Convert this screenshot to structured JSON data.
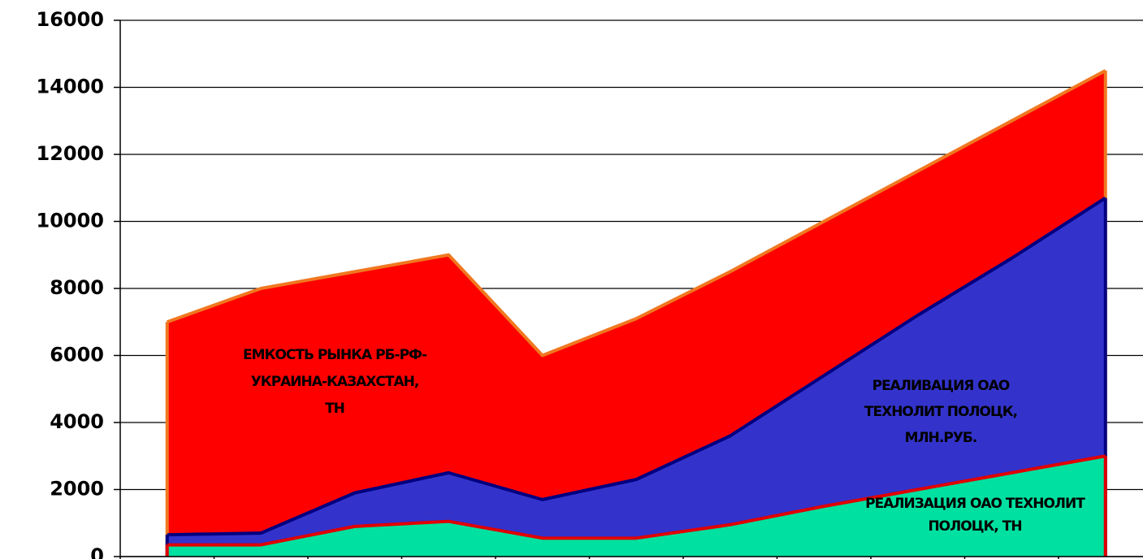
{
  "chart_data": {
    "type": "area",
    "categories": [
      null,
      null,
      null,
      null,
      null,
      null,
      null,
      null,
      null,
      null,
      null
    ],
    "ylim": [
      0,
      16000
    ],
    "yticks": [
      0,
      2000,
      4000,
      6000,
      8000,
      10000,
      12000,
      14000,
      16000
    ],
    "grid": true,
    "series": [
      {
        "label_lines": [
          "ЕМКОСТЬ РЫНКА РБ-РФ-",
          "УКРАИНА-КАЗАХСТАН,",
          "ТН"
        ],
        "color": "#ff0000",
        "edge_color": "#f07820",
        "values": [
          7000,
          8000,
          8500,
          9000,
          6000,
          7100,
          8500,
          10000,
          11500,
          13000,
          14500
        ]
      },
      {
        "label_lines": [
          "РЕАЛИВАЦИЯ ОАО",
          "ТЕХНОЛИТ ПОЛОЦК,",
          "МЛН.РУБ."
        ],
        "color": "#3333cc",
        "edge_color": "#000080",
        "values": [
          650,
          700,
          1900,
          2500,
          1700,
          2300,
          3600,
          5400,
          7200,
          8900,
          10700
        ]
      },
      {
        "label_lines": [
          "РЕАЛИЗАЦИЯ ОАО ТЕХНОЛИТ",
          "ПОЛОЦК, ТН"
        ],
        "color": "#00e0a0",
        "edge_color": "#e00000",
        "values": [
          350,
          350,
          900,
          1050,
          550,
          550,
          950,
          1500,
          2000,
          2500,
          3000
        ]
      }
    ]
  }
}
